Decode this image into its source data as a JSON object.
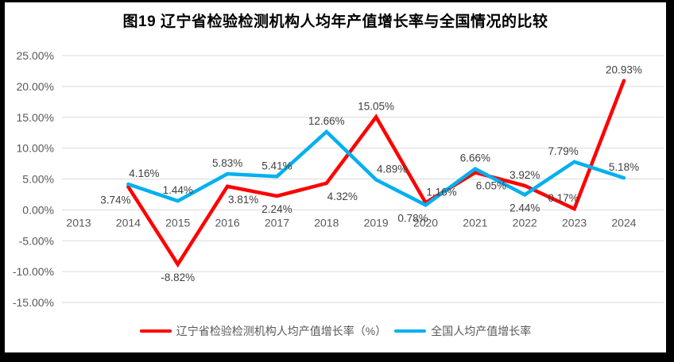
{
  "title": "图19 辽宁省检验检测机构人均年产值增长率与全国情况的比较",
  "chart_data": {
    "type": "line",
    "title": "图19 辽宁省检验检测机构人均年产值增长率与全国情况的比较",
    "categories": [
      "2013",
      "2014",
      "2015",
      "2016",
      "2017",
      "2018",
      "2019",
      "2020",
      "2021",
      "2022",
      "2023",
      "2024"
    ],
    "series": [
      {
        "name": "辽宁省检验检测机构人均产值增长率（%）",
        "color": "#FF0000",
        "values": [
          null,
          3.74,
          -8.82,
          3.81,
          2.24,
          4.32,
          15.05,
          1.16,
          6.05,
          3.92,
          0.17,
          20.93
        ],
        "label_positions": [
          null,
          "below-left",
          "below",
          "below-right",
          "below",
          "below-right",
          "above",
          "above-right",
          "below-right",
          "above",
          "above-left",
          "above"
        ]
      },
      {
        "name": "全国人均产值增长率",
        "color": "#00B0F0",
        "values": [
          null,
          4.16,
          1.44,
          5.83,
          5.41,
          12.66,
          4.89,
          0.78,
          6.66,
          2.44,
          7.79,
          5.18
        ],
        "label_positions": [
          null,
          "above-right",
          "above",
          "above",
          "above",
          "above",
          "above-right",
          "below-left",
          "above",
          "below",
          "above-left",
          "above"
        ]
      }
    ],
    "xlabel": "",
    "ylabel": "",
    "ylim": [
      -15,
      25
    ],
    "ytick_step": 5,
    "ytick_suffix": "%",
    "ytick_decimals": 2,
    "grid": true,
    "legend_position": "bottom",
    "colors": {
      "grid": "#D9D9D9",
      "axis_text": "#595959",
      "data_label": "#404040",
      "title_text": "#000000",
      "frame_border": "#000000"
    }
  }
}
